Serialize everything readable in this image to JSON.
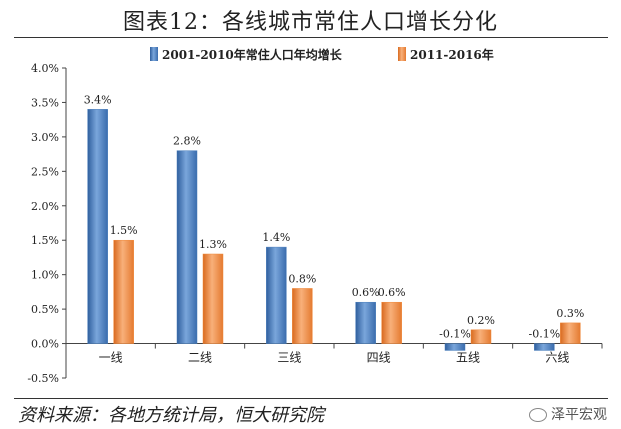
{
  "title": "图表12：各线城市常住人口增长分化",
  "source": "资料来源：各地方统计局，恒大研究院",
  "watermark": "泽平宏观",
  "icons": {
    "watermark": "wechat-icon"
  },
  "colors": {
    "series1": "#4a7ebb",
    "series2": "#f08a3c"
  },
  "chart_data": {
    "type": "bar",
    "categories": [
      "一线",
      "二线",
      "三线",
      "四线",
      "五线",
      "六线"
    ],
    "series": [
      {
        "name": "2001-2010年常住人口年均增长",
        "values": [
          3.4,
          2.8,
          1.4,
          0.6,
          -0.1,
          -0.1
        ],
        "labels": [
          "3.4%",
          "2.8%",
          "1.4%",
          "0.6%",
          "-0.1%",
          "-0.1%"
        ]
      },
      {
        "name": "2011-2016年",
        "values": [
          1.5,
          1.3,
          0.8,
          0.6,
          0.2,
          0.3
        ],
        "labels": [
          "1.5%",
          "1.3%",
          "0.8%",
          "0.6%",
          "0.2%",
          "0.3%"
        ]
      }
    ],
    "yticks": [
      "-0.5%",
      "0.0%",
      "0.5%",
      "1.0%",
      "1.5%",
      "2.0%",
      "2.5%",
      "3.0%",
      "3.5%",
      "4.0%"
    ],
    "ylim": [
      -0.5,
      4.0
    ],
    "legend_position": "top-center",
    "grid": false
  }
}
